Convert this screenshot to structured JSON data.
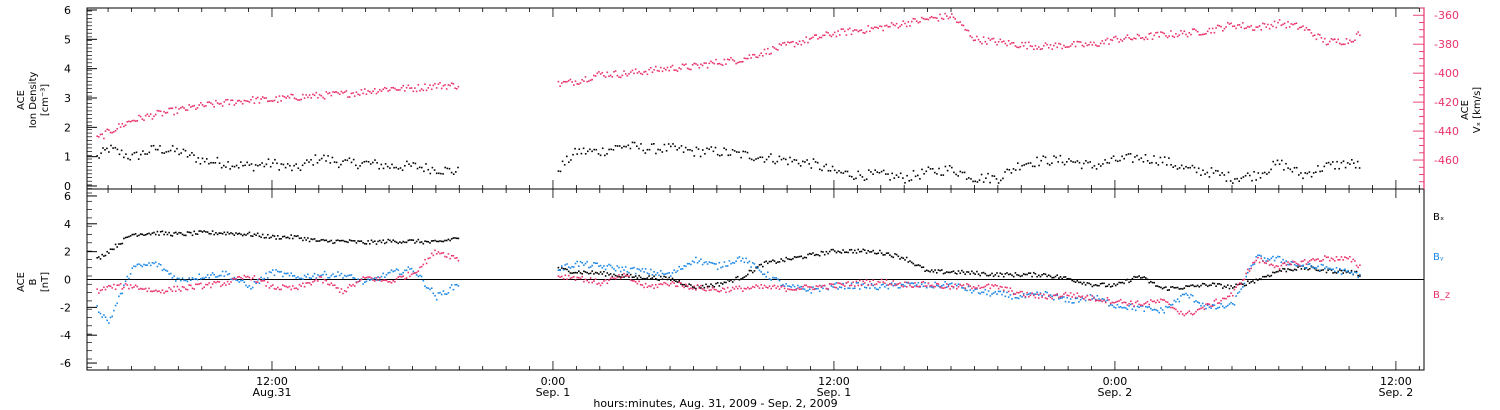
{
  "colors": {
    "black": "#000000",
    "pink": "#e8336b",
    "blue": "#1e88e5"
  },
  "xaxis": {
    "title": "hours:minutes, Aug. 31, 2009 - Sep.  2, 2009",
    "ticks": [
      {
        "hour": 12,
        "time": "12:00",
        "date": "Aug.31"
      },
      {
        "hour": 24,
        "time": "0:00",
        "date": "Sep. 1"
      },
      {
        "hour": 36,
        "time": "12:00",
        "date": "Sep. 1"
      },
      {
        "hour": 48,
        "time": "0:00",
        "date": "Sep. 2"
      },
      {
        "hour": 60,
        "time": "12:00",
        "date": "Sep. 2"
      }
    ]
  },
  "chart_data": [
    {
      "type": "scatter",
      "panel": "top",
      "xrange_hours": [
        4.1,
        61.2
      ],
      "ylabel_left": [
        "ACE",
        "Ion Density",
        "[cm⁻³]"
      ],
      "ylabel_right": [
        "ACE",
        "Vₓ [km/s]"
      ],
      "ylim_left": [
        0,
        6
      ],
      "ylim_right": [
        -480,
        -355
      ],
      "yticks_left": [
        "0",
        "1",
        "2",
        "3",
        "4",
        "5",
        "6"
      ],
      "yticks_right": [
        "-460",
        "-440",
        "-420",
        "-400",
        "-380",
        "-360"
      ],
      "data_gap_hours": [
        20.0,
        24.0
      ],
      "series": [
        {
          "name": "Ion Density",
          "axis": "left",
          "color": "black",
          "x": [
            4.5,
            5,
            6,
            7,
            8,
            9,
            10,
            11,
            12,
            13,
            14,
            15,
            16,
            17,
            18,
            19,
            20,
            24.2,
            25,
            26,
            27,
            28,
            29,
            30,
            31,
            32,
            33,
            34,
            35,
            36,
            37,
            38,
            39,
            40,
            41,
            42,
            43,
            44,
            45,
            46,
            47,
            48,
            49,
            50,
            51,
            52,
            53,
            54,
            55,
            56,
            57,
            58,
            58.5
          ],
          "y": [
            1.0,
            1.3,
            1.0,
            1.3,
            1.2,
            0.9,
            0.8,
            0.7,
            0.8,
            0.6,
            1.0,
            0.8,
            0.8,
            0.7,
            0.7,
            0.6,
            0.5,
            0.6,
            1.2,
            1.2,
            1.4,
            1.3,
            1.3,
            1.2,
            1.2,
            1.1,
            1.0,
            0.9,
            0.8,
            0.5,
            0.4,
            0.4,
            0.3,
            0.5,
            0.6,
            0.3,
            0.3,
            0.8,
            0.9,
            0.9,
            0.7,
            0.9,
            1.0,
            0.9,
            0.6,
            0.5,
            0.3,
            0.4,
            0.8,
            0.4,
            0.7,
            0.8,
            0.7
          ]
        },
        {
          "name": "Vₓ",
          "axis": "right",
          "color": "pink",
          "x": [
            4.5,
            5,
            6,
            7,
            8,
            9,
            10,
            11,
            12,
            13,
            14,
            15,
            16,
            17,
            18,
            19,
            20,
            24.2,
            25,
            26,
            27,
            28,
            29,
            30,
            31,
            32,
            33,
            34,
            35,
            36,
            37,
            38,
            39,
            40,
            41,
            42,
            43,
            44,
            45,
            46,
            47,
            48,
            49,
            50,
            51,
            52,
            53,
            54,
            55,
            56,
            57,
            58,
            58.5
          ],
          "y": [
            -445,
            -440,
            -432,
            -428,
            -425,
            -422,
            -420,
            -418,
            -418,
            -416,
            -415,
            -414,
            -412,
            -410,
            -410,
            -408,
            -408,
            -407,
            -405,
            -400,
            -400,
            -398,
            -396,
            -395,
            -392,
            -390,
            -385,
            -380,
            -376,
            -372,
            -370,
            -368,
            -365,
            -362,
            -360,
            -376,
            -378,
            -380,
            -381,
            -380,
            -380,
            -376,
            -375,
            -373,
            -372,
            -370,
            -366,
            -368,
            -365,
            -368,
            -378,
            -377,
            -371
          ]
        }
      ]
    },
    {
      "type": "scatter",
      "panel": "bottom",
      "xrange_hours": [
        4.1,
        61.2
      ],
      "ylabel_left": [
        "ACE",
        "B",
        "[nT]"
      ],
      "ylim": [
        -6.5,
        6.5
      ],
      "yticks": [
        "-6",
        "-4",
        "-2",
        "0",
        "2",
        "4",
        "6"
      ],
      "data_gap_hours": [
        20.0,
        24.0
      ],
      "legend": {
        "placement": "right",
        "entries": [
          "Bₓ",
          "Bᵧ",
          "B_z"
        ]
      },
      "series": [
        {
          "name": "Bₓ",
          "color": "black",
          "x": [
            4.5,
            5,
            6,
            7,
            8,
            9,
            10,
            11,
            12,
            13,
            14,
            15,
            16,
            17,
            18,
            19,
            20,
            24.2,
            25,
            26,
            27,
            28,
            29,
            30,
            31,
            32,
            33,
            34,
            35,
            36,
            37,
            38,
            39,
            40,
            41,
            42,
            43,
            44,
            45,
            46,
            47,
            48,
            49,
            50,
            51,
            52,
            53,
            54,
            55,
            56,
            57,
            58,
            58.5
          ],
          "y": [
            1.5,
            2.1,
            3.3,
            3.4,
            3.3,
            3.4,
            3.4,
            3.3,
            3.1,
            3.1,
            2.8,
            2.8,
            2.7,
            2.8,
            2.8,
            2.7,
            3.1,
            0.8,
            0.6,
            0.5,
            0.3,
            0.2,
            0.1,
            -0.5,
            -0.3,
            0.2,
            1.2,
            1.5,
            1.8,
            2.1,
            2.1,
            2.0,
            1.6,
            0.6,
            0.6,
            0.5,
            0.4,
            0.4,
            0.4,
            0.1,
            -0.3,
            -0.4,
            0.3,
            -0.6,
            -0.5,
            -0.3,
            -0.5,
            0.0,
            0.7,
            0.9,
            0.7,
            0.6,
            0.4
          ]
        },
        {
          "name": "Bᵧ",
          "color": "blue",
          "x": [
            4.5,
            5,
            6,
            7,
            8,
            9,
            10,
            11,
            12,
            13,
            14,
            15,
            16,
            17,
            18,
            19,
            20,
            24.2,
            25,
            26,
            27,
            28,
            29,
            30,
            31,
            32,
            33,
            34,
            35,
            36,
            37,
            38,
            39,
            40,
            41,
            42,
            43,
            44,
            45,
            46,
            47,
            48,
            49,
            50,
            51,
            52,
            53,
            54,
            55,
            56,
            57,
            58,
            58.5
          ],
          "y": [
            -2.0,
            -3.0,
            0.9,
            1.2,
            0.0,
            0.3,
            0.5,
            -0.5,
            0.6,
            0.2,
            0.4,
            0.4,
            -0.2,
            0.5,
            0.8,
            -1.2,
            -0.2,
            0.8,
            1.2,
            1.0,
            0.8,
            0.6,
            0.4,
            1.5,
            1.0,
            1.6,
            0.5,
            -0.5,
            -0.7,
            -0.4,
            -0.4,
            -0.5,
            -0.3,
            -0.4,
            -0.3,
            -0.8,
            -1.0,
            -1.2,
            -1.0,
            -1.5,
            -1.2,
            -1.8,
            -2.0,
            -2.2,
            -1.0,
            -2.0,
            -1.8,
            1.6,
            1.5,
            1.0,
            0.9,
            0.5,
            0.4
          ]
        },
        {
          "name": "B_z",
          "color": "pink",
          "x": [
            4.5,
            5,
            6,
            7,
            8,
            9,
            10,
            11,
            12,
            13,
            14,
            15,
            16,
            17,
            18,
            19,
            20,
            24.2,
            25,
            26,
            27,
            28,
            29,
            30,
            31,
            32,
            33,
            34,
            35,
            36,
            37,
            38,
            39,
            40,
            41,
            42,
            43,
            44,
            45,
            46,
            47,
            48,
            49,
            50,
            51,
            52,
            53,
            54,
            55,
            56,
            57,
            58,
            58.5
          ],
          "y": [
            -0.8,
            -0.5,
            -0.4,
            -0.8,
            -0.6,
            -0.4,
            -0.2,
            0.3,
            -0.5,
            -0.6,
            0.1,
            -0.8,
            0.2,
            -0.1,
            0.5,
            2.1,
            1.5,
            0.3,
            0.2,
            -0.2,
            0.3,
            -0.5,
            -0.2,
            -0.5,
            -0.7,
            -0.6,
            -0.5,
            -0.6,
            -0.5,
            -0.4,
            -0.2,
            -0.1,
            -0.3,
            -0.3,
            -0.5,
            -0.4,
            -0.5,
            -1.0,
            -1.2,
            -1.0,
            -1.3,
            -1.5,
            -1.7,
            -1.5,
            -2.5,
            -1.8,
            -1.0,
            1.5,
            1.0,
            1.3,
            1.6,
            1.5,
            0.9
          ]
        }
      ]
    }
  ]
}
